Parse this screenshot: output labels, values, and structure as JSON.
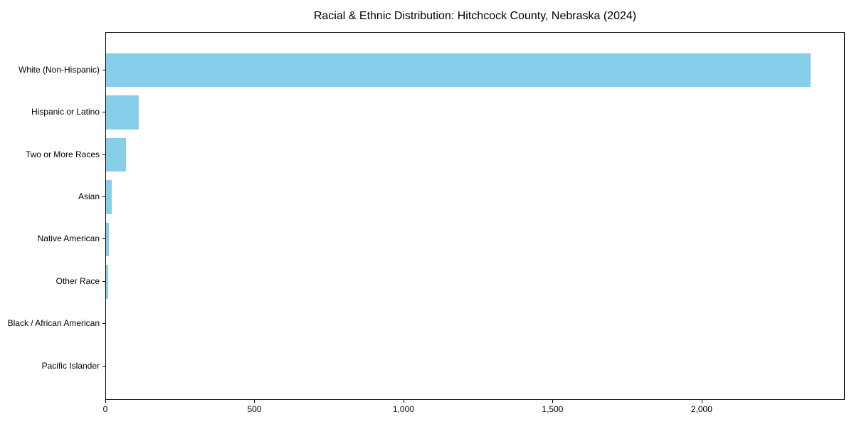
{
  "chart_data": {
    "type": "bar",
    "orientation": "horizontal",
    "title": "Racial & Ethnic Distribution: Hitchcock County, Nebraska (2024)",
    "xlabel": "",
    "ylabel": "",
    "categories": [
      "White (Non-Hispanic)",
      "Hispanic or Latino",
      "Two or More Races",
      "Asian",
      "Native American",
      "Other Race",
      "Black / African American",
      "Pacific Islander"
    ],
    "values": [
      2362,
      110,
      68,
      19,
      9,
      8,
      0,
      0
    ],
    "xlim": [
      0,
      2480
    ],
    "xticks": [
      0,
      500,
      1000,
      1500,
      2000
    ],
    "xtick_labels": [
      "0",
      "500",
      "1,000",
      "1,500",
      "2,000"
    ],
    "bar_color": "#87CEEB",
    "spine_color": "#000000",
    "grid": false,
    "legend": null
  }
}
